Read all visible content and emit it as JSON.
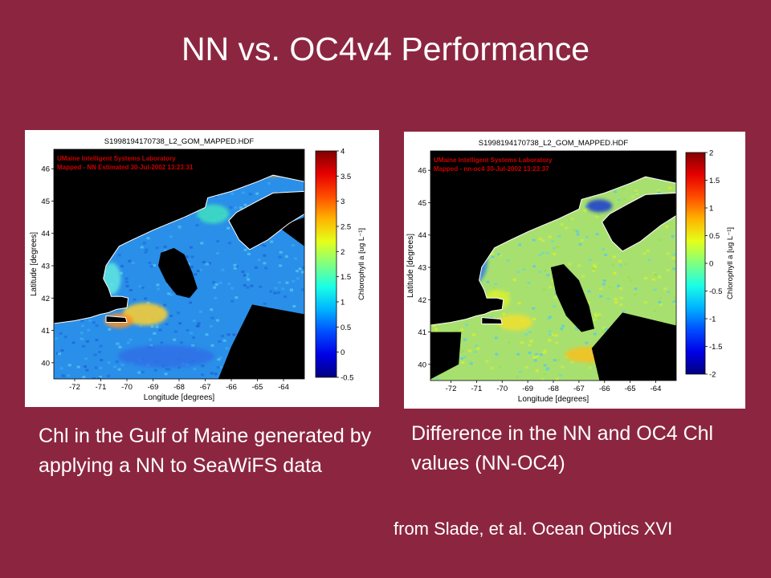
{
  "slide": {
    "title": "NN vs. OC4v4 Performance",
    "caption_left": "Chl in the Gulf of Maine generated by applying a NN to SeaWiFS data",
    "caption_right": "Difference in the NN and OC4 Chl values (NN-OC4)",
    "source": "from Slade, et al. Ocean Optics XVI",
    "background_color": "#8c2640"
  },
  "chart_data": [
    {
      "type": "heatmap",
      "title": "S1998194170738_L2_GOM_MAPPED.HDF",
      "annotation": [
        "UMaine Intelligent Systems Laboratory",
        "Mapped - NN Estimated 30-Jul-2002 13:23:31"
      ],
      "xlabel": "Longitude [degrees]",
      "ylabel": "Latitude [degrees]",
      "xlim": [
        -72.8,
        -63.2
      ],
      "ylim": [
        39.5,
        46.6
      ],
      "x_ticks": [
        -72,
        -71,
        -70,
        -69,
        -68,
        -67,
        -66,
        -65,
        -64
      ],
      "y_ticks": [
        40,
        41,
        42,
        43,
        44,
        45,
        46
      ],
      "colorbar": {
        "label": "Chlorophyll a [ug L⁻¹]",
        "range": [
          -0.5,
          4
        ],
        "ticks": [
          "4",
          "3.5",
          "3",
          "2.5",
          "2",
          "1.5",
          "1",
          "0.5",
          "0",
          "-0.5"
        ]
      },
      "colors": {
        "land": "#000000",
        "coast": "#ffffff",
        "annotation": "#cc0000"
      }
    },
    {
      "type": "heatmap",
      "title": "S1998194170738_L2_GOM_MAPPED.HDF",
      "annotation": [
        "UMaine Intelligent Systems Laboratory",
        "Mapped - nn-oc4 30-Jul-2002 13:23:37"
      ],
      "xlabel": "Longitude [degrees]",
      "ylabel": "Latitude [degrees]",
      "xlim": [
        -72.8,
        -63.2
      ],
      "ylim": [
        39.5,
        46.6
      ],
      "x_ticks": [
        -72,
        -71,
        -70,
        -69,
        -68,
        -67,
        -66,
        -65,
        -64
      ],
      "y_ticks": [
        40,
        41,
        42,
        43,
        44,
        45,
        46
      ],
      "colorbar": {
        "label": "Chlorophyll a [ug L⁻¹]",
        "range": [
          -2,
          2
        ],
        "ticks": [
          "2",
          "1.5",
          "1",
          "0.5",
          "0",
          "-0.5",
          "-1",
          "-1.5",
          "-2"
        ]
      },
      "colors": {
        "land": "#000000",
        "coast": "#ffffff",
        "annotation": "#cc0000"
      }
    }
  ]
}
